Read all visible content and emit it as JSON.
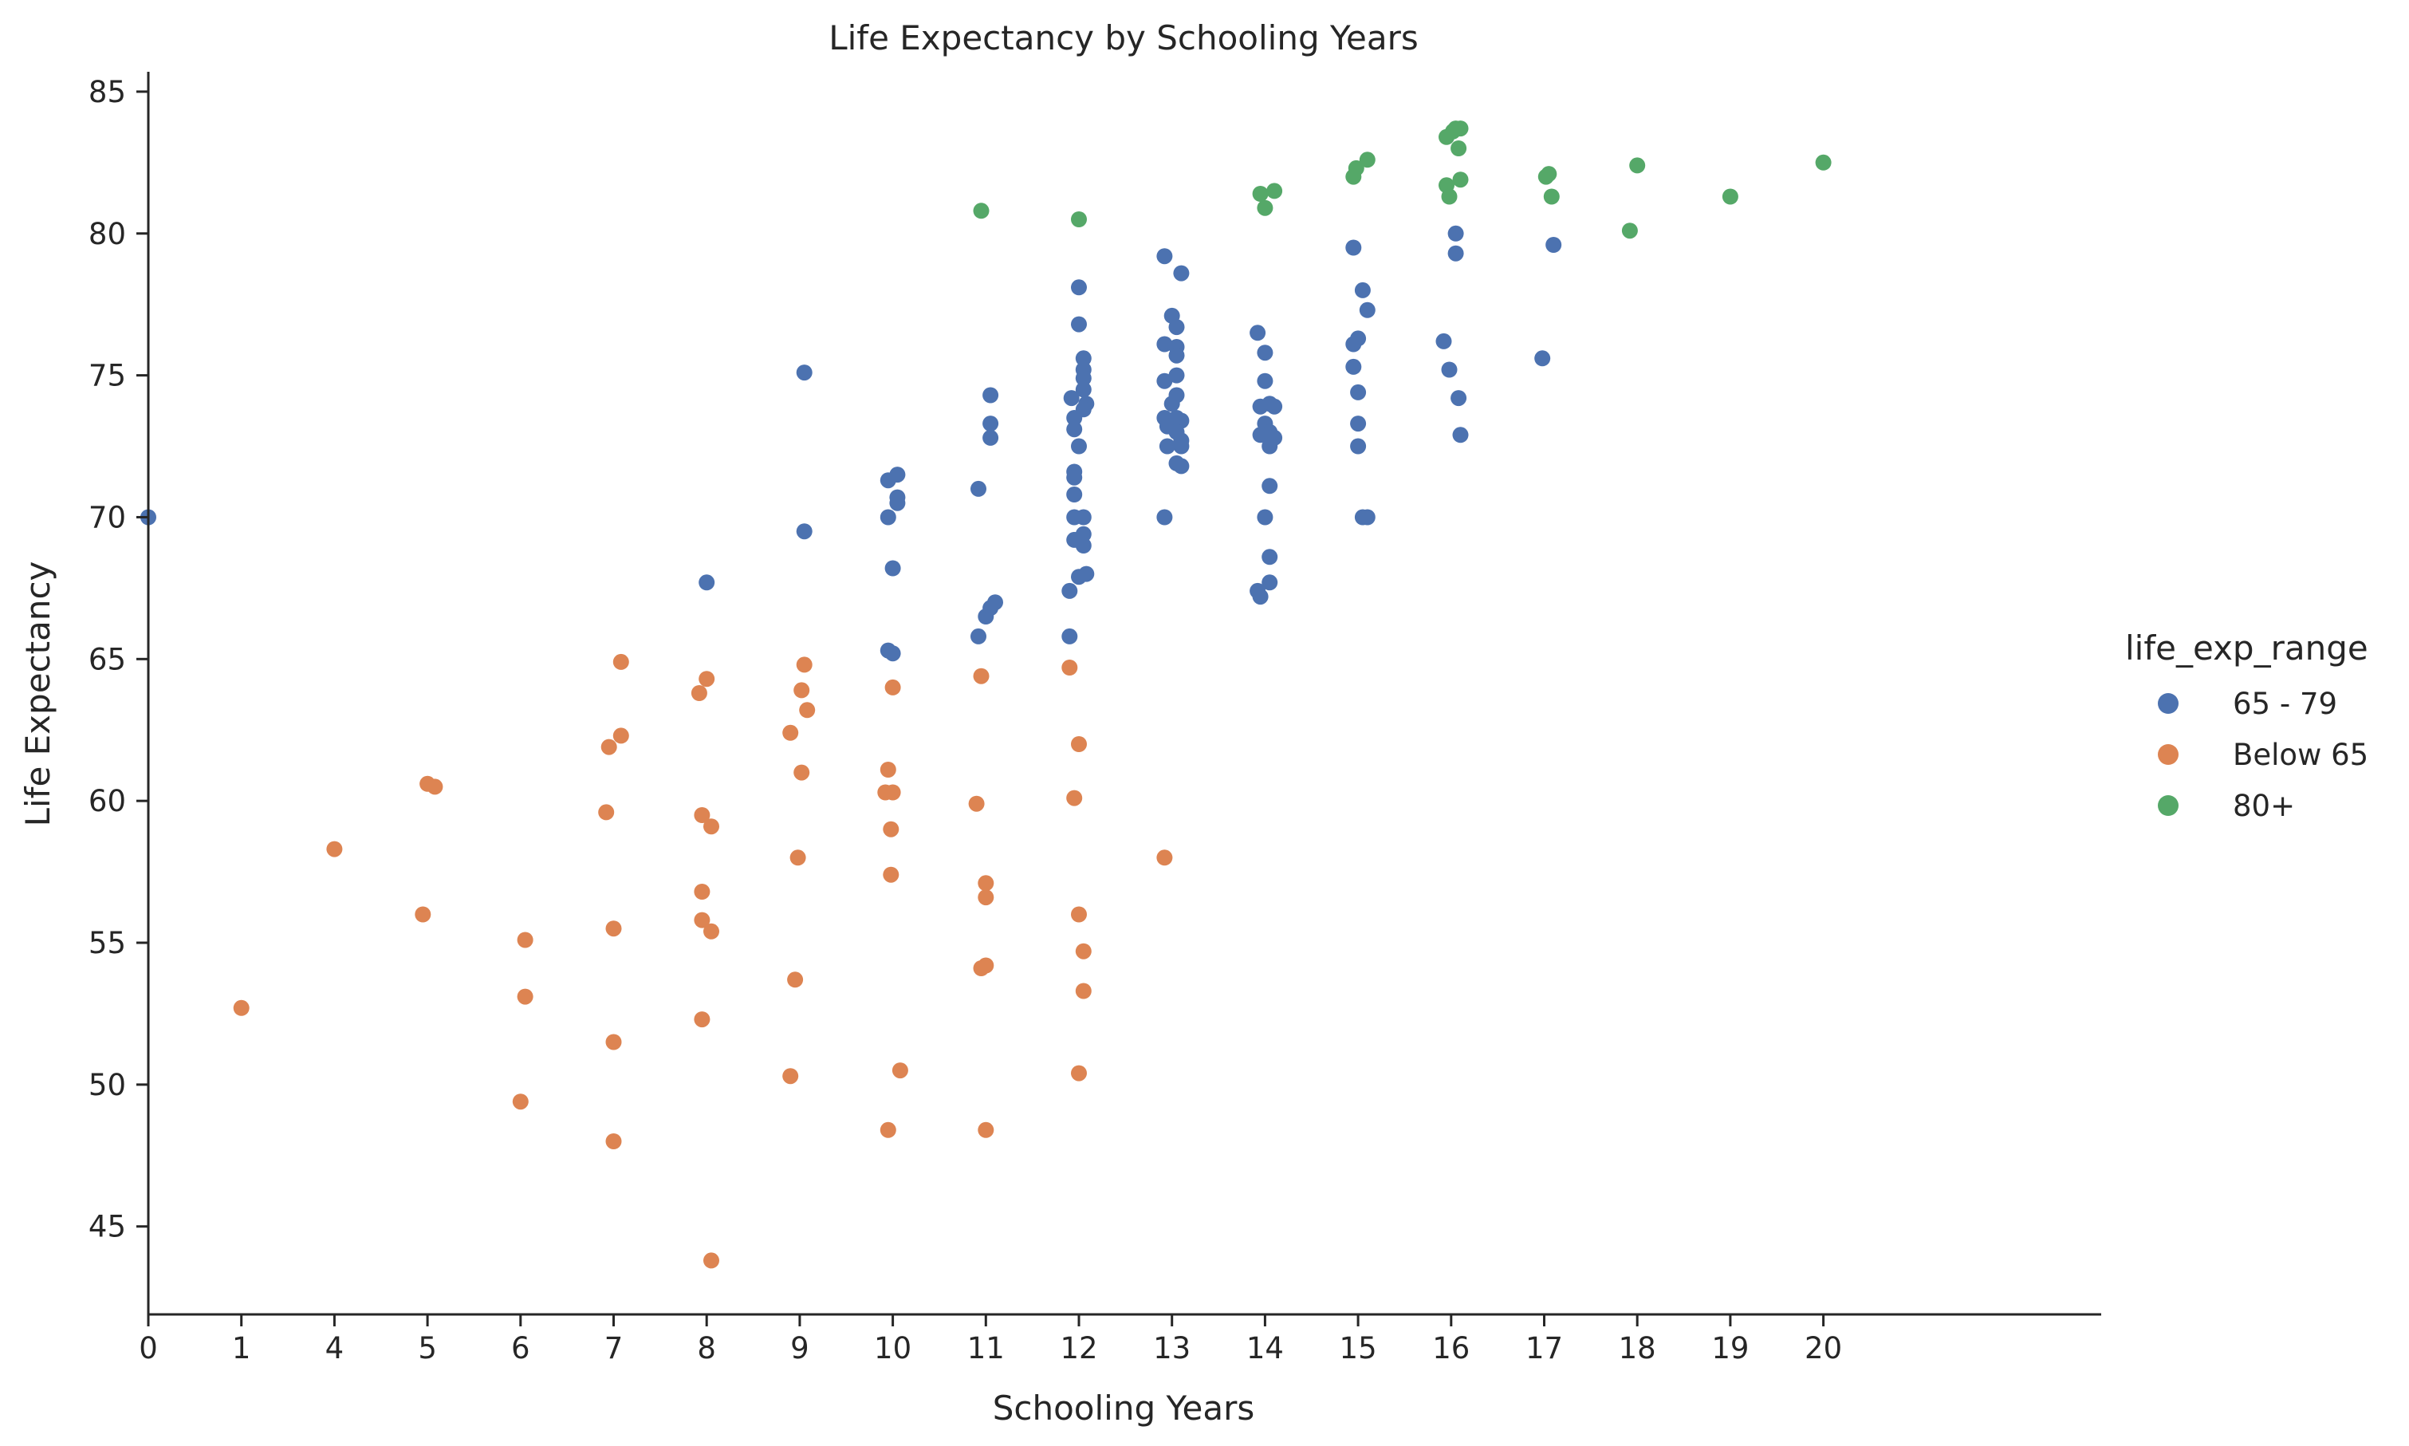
{
  "chart_data": {
    "type": "scatter",
    "title": "Life Expectancy by Schooling Years",
    "xlabel": "Schooling Years",
    "ylabel": "Life Expectancy",
    "x_categories": [
      "0",
      "1",
      "4",
      "5",
      "6",
      "7",
      "8",
      "9",
      "10",
      "11",
      "12",
      "13",
      "14",
      "15",
      "16",
      "17",
      "18",
      "19",
      "20"
    ],
    "ylim": [
      41.9,
      85.7
    ],
    "y_ticks": [
      45,
      50,
      55,
      60,
      65,
      70,
      75,
      80,
      85
    ],
    "grid": false,
    "legend": {
      "title": "life_exp_range",
      "position": "center-right"
    },
    "series": [
      {
        "name": "65 - 79",
        "color": "#4c72b0",
        "points": [
          [
            "0",
            0.0,
            70.0
          ],
          [
            "8",
            0.0,
            67.7
          ],
          [
            "9",
            0.05,
            75.1
          ],
          [
            "9",
            0.05,
            69.5
          ],
          [
            "10",
            -0.05,
            71.3
          ],
          [
            "10",
            0.05,
            71.5
          ],
          [
            "10",
            0.05,
            70.7
          ],
          [
            "10",
            0.05,
            70.5
          ],
          [
            "10",
            -0.05,
            70.0
          ],
          [
            "10",
            0.0,
            68.2
          ],
          [
            "10",
            -0.05,
            65.3
          ],
          [
            "10",
            0.0,
            65.2
          ],
          [
            "11",
            0.05,
            74.3
          ],
          [
            "11",
            0.05,
            73.3
          ],
          [
            "11",
            0.05,
            72.8
          ],
          [
            "11",
            -0.08,
            71.0
          ],
          [
            "11",
            0.1,
            67.0
          ],
          [
            "11",
            0.05,
            66.8
          ],
          [
            "11",
            0.0,
            66.5
          ],
          [
            "11",
            -0.08,
            65.8
          ],
          [
            "12",
            0.0,
            78.1
          ],
          [
            "12",
            0.0,
            76.8
          ],
          [
            "12",
            0.05,
            75.6
          ],
          [
            "12",
            0.05,
            75.2
          ],
          [
            "12",
            0.05,
            74.9
          ],
          [
            "12",
            0.05,
            74.5
          ],
          [
            "12",
            -0.08,
            74.2
          ],
          [
            "12",
            0.08,
            74.0
          ],
          [
            "12",
            0.05,
            73.8
          ],
          [
            "12",
            -0.05,
            73.5
          ],
          [
            "12",
            -0.05,
            73.1
          ],
          [
            "12",
            0.0,
            72.5
          ],
          [
            "12",
            -0.05,
            71.6
          ],
          [
            "12",
            -0.05,
            71.4
          ],
          [
            "12",
            -0.05,
            70.8
          ],
          [
            "12",
            -0.05,
            70.0
          ],
          [
            "12",
            0.05,
            70.0
          ],
          [
            "12",
            0.05,
            69.4
          ],
          [
            "12",
            -0.05,
            69.2
          ],
          [
            "12",
            0.05,
            69.0
          ],
          [
            "12",
            0.08,
            68.0
          ],
          [
            "12",
            0.0,
            67.9
          ],
          [
            "12",
            -0.1,
            67.4
          ],
          [
            "12",
            -0.1,
            65.8
          ],
          [
            "13",
            -0.08,
            79.2
          ],
          [
            "13",
            0.1,
            78.6
          ],
          [
            "13",
            0.0,
            77.1
          ],
          [
            "13",
            0.05,
            76.7
          ],
          [
            "13",
            -0.08,
            76.1
          ],
          [
            "13",
            0.05,
            76.0
          ],
          [
            "13",
            0.05,
            75.7
          ],
          [
            "13",
            0.05,
            75.0
          ],
          [
            "13",
            -0.08,
            74.8
          ],
          [
            "13",
            0.05,
            74.3
          ],
          [
            "13",
            0.0,
            74.0
          ],
          [
            "13",
            -0.08,
            73.5
          ],
          [
            "13",
            0.05,
            73.5
          ],
          [
            "13",
            0.1,
            73.4
          ],
          [
            "13",
            -0.05,
            73.2
          ],
          [
            "13",
            0.05,
            73.0
          ],
          [
            "13",
            0.1,
            72.7
          ],
          [
            "13",
            -0.05,
            72.5
          ],
          [
            "13",
            0.1,
            72.5
          ],
          [
            "13",
            0.05,
            71.9
          ],
          [
            "13",
            0.1,
            71.8
          ],
          [
            "13",
            -0.08,
            70.0
          ],
          [
            "14",
            -0.08,
            76.5
          ],
          [
            "14",
            0.0,
            75.8
          ],
          [
            "14",
            0.0,
            74.8
          ],
          [
            "14",
            -0.05,
            73.9
          ],
          [
            "14",
            0.05,
            74.0
          ],
          [
            "14",
            0.1,
            73.9
          ],
          [
            "14",
            0.0,
            73.3
          ],
          [
            "14",
            0.05,
            73.0
          ],
          [
            "14",
            -0.05,
            72.9
          ],
          [
            "14",
            0.1,
            72.8
          ],
          [
            "14",
            0.05,
            72.5
          ],
          [
            "14",
            0.05,
            71.1
          ],
          [
            "14",
            0.0,
            70.0
          ],
          [
            "14",
            0.05,
            68.6
          ],
          [
            "14",
            0.05,
            67.7
          ],
          [
            "14",
            -0.08,
            67.4
          ],
          [
            "14",
            -0.05,
            67.2
          ],
          [
            "15",
            -0.05,
            79.5
          ],
          [
            "15",
            0.05,
            78.0
          ],
          [
            "15",
            0.1,
            77.3
          ],
          [
            "15",
            0.0,
            76.3
          ],
          [
            "15",
            -0.05,
            76.1
          ],
          [
            "15",
            -0.05,
            75.3
          ],
          [
            "15",
            0.0,
            74.4
          ],
          [
            "15",
            0.0,
            73.3
          ],
          [
            "15",
            0.0,
            72.5
          ],
          [
            "15",
            0.05,
            70.0
          ],
          [
            "15",
            0.1,
            70.0
          ],
          [
            "16",
            0.05,
            80.0
          ],
          [
            "16",
            0.05,
            79.3
          ],
          [
            "16",
            -0.08,
            76.2
          ],
          [
            "16",
            -0.02,
            75.2
          ],
          [
            "16",
            0.08,
            74.2
          ],
          [
            "16",
            0.1,
            72.9
          ],
          [
            "17",
            -0.02,
            75.6
          ],
          [
            "17",
            0.1,
            79.6
          ]
        ]
      },
      {
        "name": "Below 65",
        "color": "#dd8452",
        "points": [
          [
            "1",
            0.0,
            52.7
          ],
          [
            "4",
            0.0,
            58.3
          ],
          [
            "5",
            0.0,
            60.6
          ],
          [
            "5",
            0.08,
            60.5
          ],
          [
            "5",
            -0.05,
            56.0
          ],
          [
            "6",
            0.05,
            55.1
          ],
          [
            "6",
            0.05,
            53.1
          ],
          [
            "6",
            0.0,
            49.4
          ],
          [
            "7",
            0.08,
            64.9
          ],
          [
            "7",
            0.08,
            62.3
          ],
          [
            "7",
            -0.05,
            61.9
          ],
          [
            "7",
            -0.08,
            59.6
          ],
          [
            "7",
            0.0,
            55.5
          ],
          [
            "7",
            0.0,
            51.5
          ],
          [
            "7",
            0.0,
            48.0
          ],
          [
            "8",
            0.0,
            64.3
          ],
          [
            "8",
            -0.08,
            63.8
          ],
          [
            "8",
            -0.05,
            59.5
          ],
          [
            "8",
            0.05,
            59.1
          ],
          [
            "8",
            -0.05,
            56.8
          ],
          [
            "8",
            -0.05,
            55.8
          ],
          [
            "8",
            0.05,
            55.4
          ],
          [
            "8",
            -0.05,
            52.3
          ],
          [
            "8",
            0.05,
            43.8
          ],
          [
            "9",
            0.05,
            64.8
          ],
          [
            "9",
            0.02,
            63.9
          ],
          [
            "9",
            0.08,
            63.2
          ],
          [
            "9",
            -0.1,
            62.4
          ],
          [
            "9",
            0.02,
            61.0
          ],
          [
            "9",
            -0.02,
            58.0
          ],
          [
            "9",
            -0.05,
            53.7
          ],
          [
            "9",
            -0.1,
            50.3
          ],
          [
            "10",
            0.0,
            64.0
          ],
          [
            "10",
            -0.05,
            61.1
          ],
          [
            "10",
            -0.08,
            60.3
          ],
          [
            "10",
            0.0,
            60.3
          ],
          [
            "10",
            -0.02,
            59.0
          ],
          [
            "10",
            -0.02,
            57.4
          ],
          [
            "10",
            0.08,
            50.5
          ],
          [
            "10",
            -0.05,
            48.4
          ],
          [
            "11",
            -0.05,
            64.4
          ],
          [
            "11",
            -0.1,
            59.9
          ],
          [
            "11",
            0.0,
            57.1
          ],
          [
            "11",
            0.0,
            56.6
          ],
          [
            "11",
            -0.05,
            54.1
          ],
          [
            "11",
            0.0,
            54.2
          ],
          [
            "11",
            0.0,
            48.4
          ],
          [
            "12",
            -0.1,
            64.7
          ],
          [
            "12",
            0.0,
            62.0
          ],
          [
            "12",
            -0.05,
            60.1
          ],
          [
            "12",
            0.0,
            56.0
          ],
          [
            "12",
            0.05,
            54.7
          ],
          [
            "12",
            0.05,
            53.3
          ],
          [
            "12",
            0.0,
            50.4
          ],
          [
            "13",
            -0.08,
            58.0
          ]
        ]
      },
      {
        "name": "80+",
        "color": "#55a868",
        "points": [
          [
            "11",
            -0.05,
            80.8
          ],
          [
            "12",
            0.0,
            80.5
          ],
          [
            "14",
            -0.05,
            81.4
          ],
          [
            "14",
            0.1,
            81.5
          ],
          [
            "14",
            0.0,
            80.9
          ],
          [
            "15",
            0.1,
            82.6
          ],
          [
            "15",
            -0.02,
            82.3
          ],
          [
            "15",
            -0.05,
            82.0
          ],
          [
            "16",
            0.05,
            83.7
          ],
          [
            "16",
            0.1,
            83.7
          ],
          [
            "16",
            0.02,
            83.6
          ],
          [
            "16",
            -0.05,
            83.4
          ],
          [
            "16",
            0.08,
            83.0
          ],
          [
            "16",
            0.1,
            81.9
          ],
          [
            "16",
            -0.05,
            81.7
          ],
          [
            "16",
            -0.02,
            81.3
          ],
          [
            "17",
            0.05,
            82.1
          ],
          [
            "17",
            0.02,
            82.0
          ],
          [
            "17",
            0.08,
            81.3
          ],
          [
            "18",
            0.0,
            82.4
          ],
          [
            "18",
            -0.08,
            80.1
          ],
          [
            "19",
            0.0,
            81.3
          ],
          [
            "20",
            0.0,
            82.5
          ]
        ]
      }
    ]
  }
}
